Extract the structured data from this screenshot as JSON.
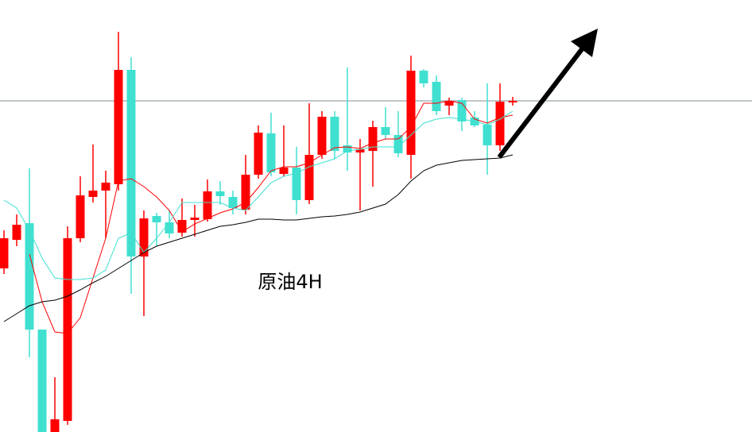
{
  "chart_data": {
    "type": "candlestick",
    "title": "原油4H",
    "ylim": [
      0,
      544
    ],
    "up_color": "#ff0000",
    "down_color": "#40e0d0",
    "open": [
      206,
      242,
      263,
      129,
      0,
      14,
      244,
      296,
      304,
      312,
      456,
      221,
      272,
      264,
      251,
      267,
      268,
      303,
      296,
      280,
      324,
      376,
      325,
      333,
      292,
      349,
      397,
      361,
      352,
      354,
      384,
      374,
      349,
      455,
      441,
      411,
      418,
      396,
      387,
      361,
      415
    ],
    "high": [
      254,
      274,
      332,
      129,
      69,
      259,
      322,
      362,
      329,
      504,
      472,
      279,
      276,
      279,
      294,
      286,
      318,
      316,
      304,
      349,
      386,
      402,
      386,
      359,
      414,
      404,
      404,
      459,
      369,
      392,
      409,
      404,
      474,
      457,
      449,
      421,
      421,
      404,
      439,
      439,
      422
    ],
    "low": [
      199,
      234,
      94,
      0,
      0,
      9,
      239,
      289,
      244,
      304,
      174,
      146,
      234,
      244,
      246,
      246,
      265,
      286,
      274,
      274,
      319,
      322,
      322,
      274,
      287,
      344,
      344,
      329,
      279,
      309,
      369,
      346,
      319,
      434,
      399,
      399,
      379,
      384,
      324,
      354,
      411
    ],
    "close": [
      244,
      261,
      129,
      0,
      16,
      244,
      298,
      304,
      314,
      456,
      221,
      269,
      264,
      250,
      267,
      270,
      303,
      297,
      282,
      324,
      377,
      327,
      333,
      292,
      349,
      397,
      354,
      352,
      356,
      384,
      374,
      351,
      455,
      439,
      404,
      417,
      391,
      386,
      361,
      416,
      417
    ],
    "series": [
      {
        "color": "#ff0000",
        "values": [
          null,
          null,
          224,
          164,
          126,
          124,
          144,
          194,
          244,
          316,
          319,
          309,
          296,
          279,
          252,
          262,
          269,
          276,
          281,
          289,
          308,
          329,
          334,
          334,
          339,
          349,
          358,
          359,
          357,
          364,
          369,
          369,
          384,
          414,
          414,
          417,
          414,
          394,
          389,
          396,
          399
        ]
      },
      {
        "color": "#40e0d0",
        "values": [
          292,
          282,
          254,
          219,
          194,
          192,
          192,
          194,
          204,
          244,
          251,
          226,
          244,
          264,
          289,
          289,
          289,
          289,
          282,
          279,
          296,
          314,
          322,
          326,
          334,
          339,
          344,
          354,
          356,
          359,
          359,
          359,
          374,
          389,
          394,
          396,
          394,
          391,
          387,
          394,
          404
        ]
      },
      {
        "color": "#000000",
        "values": [
          139,
          149,
          159,
          164,
          166,
          171,
          179,
          188,
          196,
          206,
          216,
          226,
          234,
          239,
          244,
          249,
          254,
          259,
          261,
          264,
          268,
          268,
          267,
          267,
          269,
          271,
          272,
          274,
          277,
          282,
          287,
          299,
          316,
          329,
          336,
          339,
          342,
          343,
          344,
          345,
          349
        ]
      }
    ],
    "hline": 417
  }
}
